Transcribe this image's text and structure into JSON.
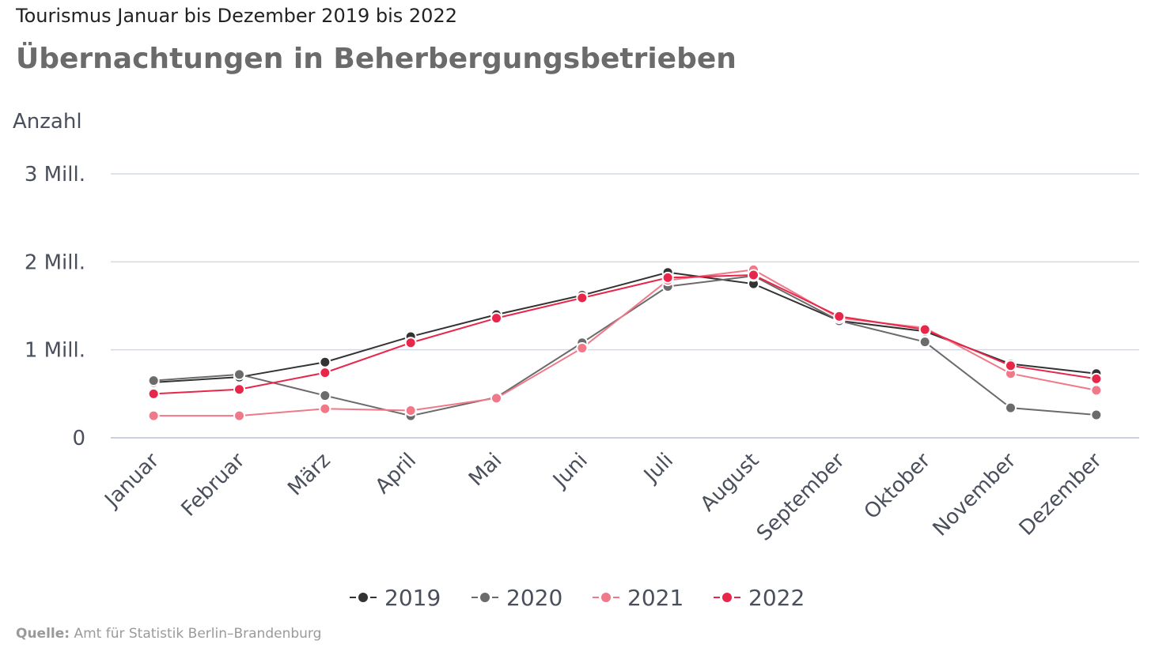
{
  "header": {
    "subtitle": "Tourismus Januar bis Dezember 2019 bis 2022",
    "title": "Übernachtungen in Beherbergungsbetrieben"
  },
  "source": {
    "label": "Quelle:",
    "text": "Amt für Statistik Berlin–Brandenburg"
  },
  "chart_data": {
    "type": "line",
    "title": "Übernachtungen in Beherbergungsbetrieben",
    "subtitle": "Tourismus Januar bis Dezember 2019 bis 2022",
    "ylabel": "Anzahl",
    "xlabel": "",
    "ylim": [
      0,
      3000000
    ],
    "yticks": [
      {
        "value": 0,
        "label": "0"
      },
      {
        "value": 1000000,
        "label": "1 Mill."
      },
      {
        "value": 2000000,
        "label": "2 Mill."
      },
      {
        "value": 3000000,
        "label": "3 Mill."
      }
    ],
    "grid": true,
    "legend": "bottom-center",
    "categories": [
      "Januar",
      "Februar",
      "März",
      "April",
      "Mai",
      "Juni",
      "Juli",
      "August",
      "September",
      "Oktober",
      "November",
      "Dezember"
    ],
    "series": [
      {
        "name": "2019",
        "color": "#333333",
        "values": [
          630000,
          690000,
          860000,
          1150000,
          1400000,
          1620000,
          1880000,
          1750000,
          1330000,
          1210000,
          840000,
          730000
        ]
      },
      {
        "name": "2020",
        "color": "#6b6b6b",
        "values": [
          650000,
          720000,
          480000,
          250000,
          460000,
          1080000,
          1720000,
          1840000,
          1330000,
          1090000,
          340000,
          260000
        ]
      },
      {
        "name": "2021",
        "color": "#f07888",
        "values": [
          250000,
          250000,
          330000,
          310000,
          450000,
          1020000,
          1790000,
          1910000,
          1360000,
          1250000,
          730000,
          540000
        ]
      },
      {
        "name": "2022",
        "color": "#e8264a",
        "values": [
          500000,
          550000,
          740000,
          1080000,
          1360000,
          1590000,
          1820000,
          1850000,
          1380000,
          1230000,
          820000,
          670000
        ]
      }
    ]
  }
}
